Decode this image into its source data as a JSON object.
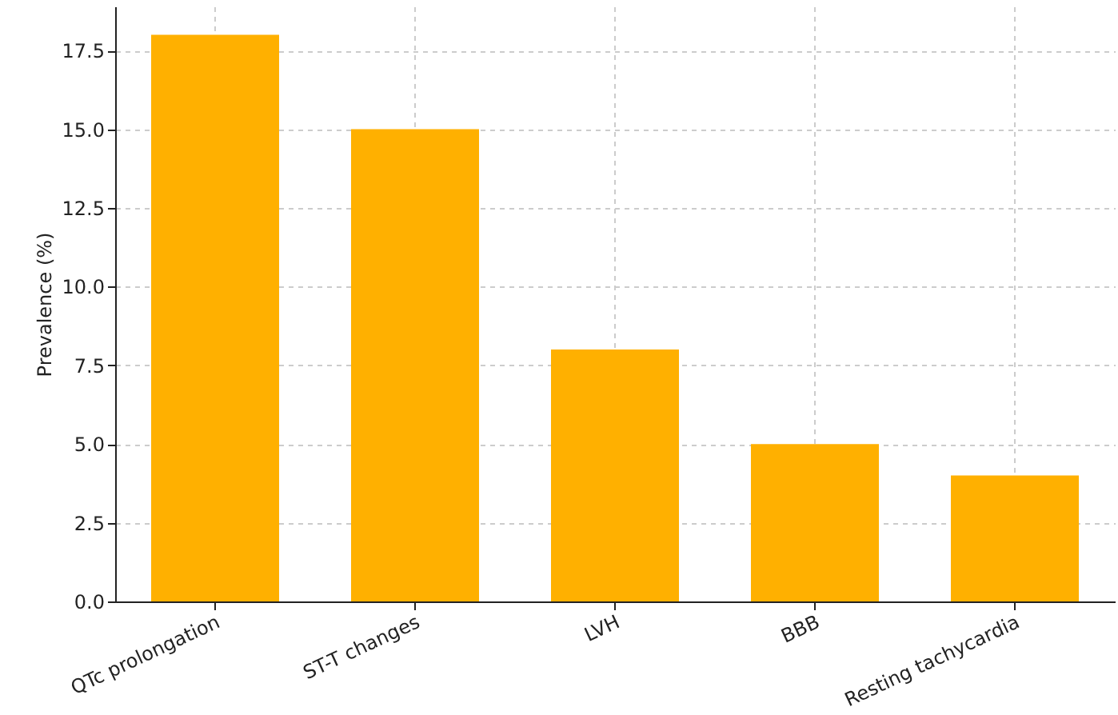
{
  "chart_data": {
    "type": "bar",
    "ylabel": "Prevalence (%)",
    "categories": [
      "QTc prolongation",
      "ST-T changes",
      "LVH",
      "BBB",
      "Resting tachycardia"
    ],
    "values": [
      18,
      15,
      8,
      5,
      4
    ],
    "color": "#ffb000",
    "ylim": [
      0,
      18.9
    ],
    "yticks": [
      {
        "value": 0,
        "label": "0.0"
      },
      {
        "value": 2.5,
        "label": "2.5"
      },
      {
        "value": 5,
        "label": "5.0"
      },
      {
        "value": 7.5,
        "label": "7.5"
      },
      {
        "value": 10,
        "label": "10.0"
      },
      {
        "value": 12.5,
        "label": "12.5"
      },
      {
        "value": 15,
        "label": "15.0"
      },
      {
        "value": 17.5,
        "label": "17.5"
      }
    ],
    "grid": true
  }
}
